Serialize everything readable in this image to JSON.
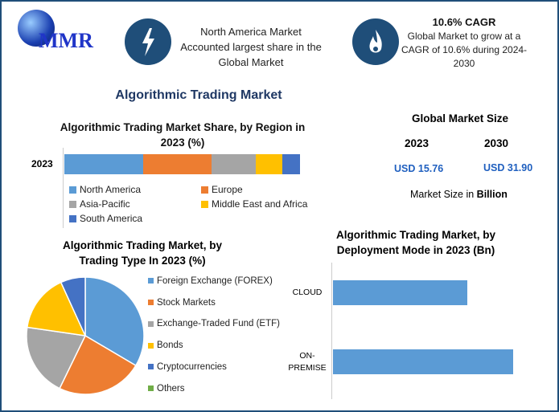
{
  "logo": {
    "text": "MMR"
  },
  "header": {
    "box1": {
      "icon": "lightning-icon",
      "text": "North America Market Accounted largest share in the Global Market"
    },
    "box2": {
      "icon": "flame-icon",
      "title": "10.6% CAGR",
      "text": "Global Market to grow at a CAGR of 10.6% during 2024-2030"
    }
  },
  "main_title": "Algorithmic Trading Market",
  "market_size": {
    "title": "Global Market Size",
    "y1": "2023",
    "y2": "2030",
    "v1": "USD 15.76",
    "v2": "USD 31.90",
    "note_prefix": "Market Size in ",
    "note_bold": "Billion"
  },
  "colors": {
    "blue": "#5b9bd5",
    "orange": "#ed7d31",
    "gray": "#a5a5a5",
    "yellow": "#ffc000",
    "darkblue": "#4472c4",
    "green": "#70ad47",
    "navy": "#1f4e79"
  },
  "chart_data": [
    {
      "type": "bar",
      "stacked": true,
      "orientation": "horizontal",
      "title": "Algorithmic Trading Market Share, by Region in 2023 (%)",
      "categories": [
        "2023"
      ],
      "legend": "bottom",
      "series": [
        {
          "name": "North America",
          "values": [
            33.4
          ]
        },
        {
          "name": "Europe",
          "values": [
            29.0
          ]
        },
        {
          "name": "Asia-Pacific",
          "values": [
            18.8
          ]
        },
        {
          "name": "Middle East and Africa",
          "values": [
            11.3
          ]
        },
        {
          "name": "South America",
          "values": [
            7.5
          ]
        }
      ]
    },
    {
      "type": "pie",
      "title": "Algorithmic Trading Market, by Trading Type In 2023 (%)",
      "legend": "right",
      "categories": [
        "Foreign Exchange (FOREX)",
        "Stock Markets",
        "Exchange-Traded Fund (ETF)",
        "Bonds",
        "Cryptocurrencies",
        "Others"
      ],
      "values": [
        33.5,
        23.7,
        20.1,
        15.9,
        6.8,
        0
      ]
    },
    {
      "type": "bar",
      "orientation": "horizontal",
      "title": "Algorithmic Trading Market, by Deployment Mode in 2023 (Bn)",
      "categories": [
        "CLOUD",
        "ON-PREMISE"
      ],
      "values": [
        6.7,
        9.0
      ],
      "xlim": [
        0,
        10
      ]
    }
  ]
}
